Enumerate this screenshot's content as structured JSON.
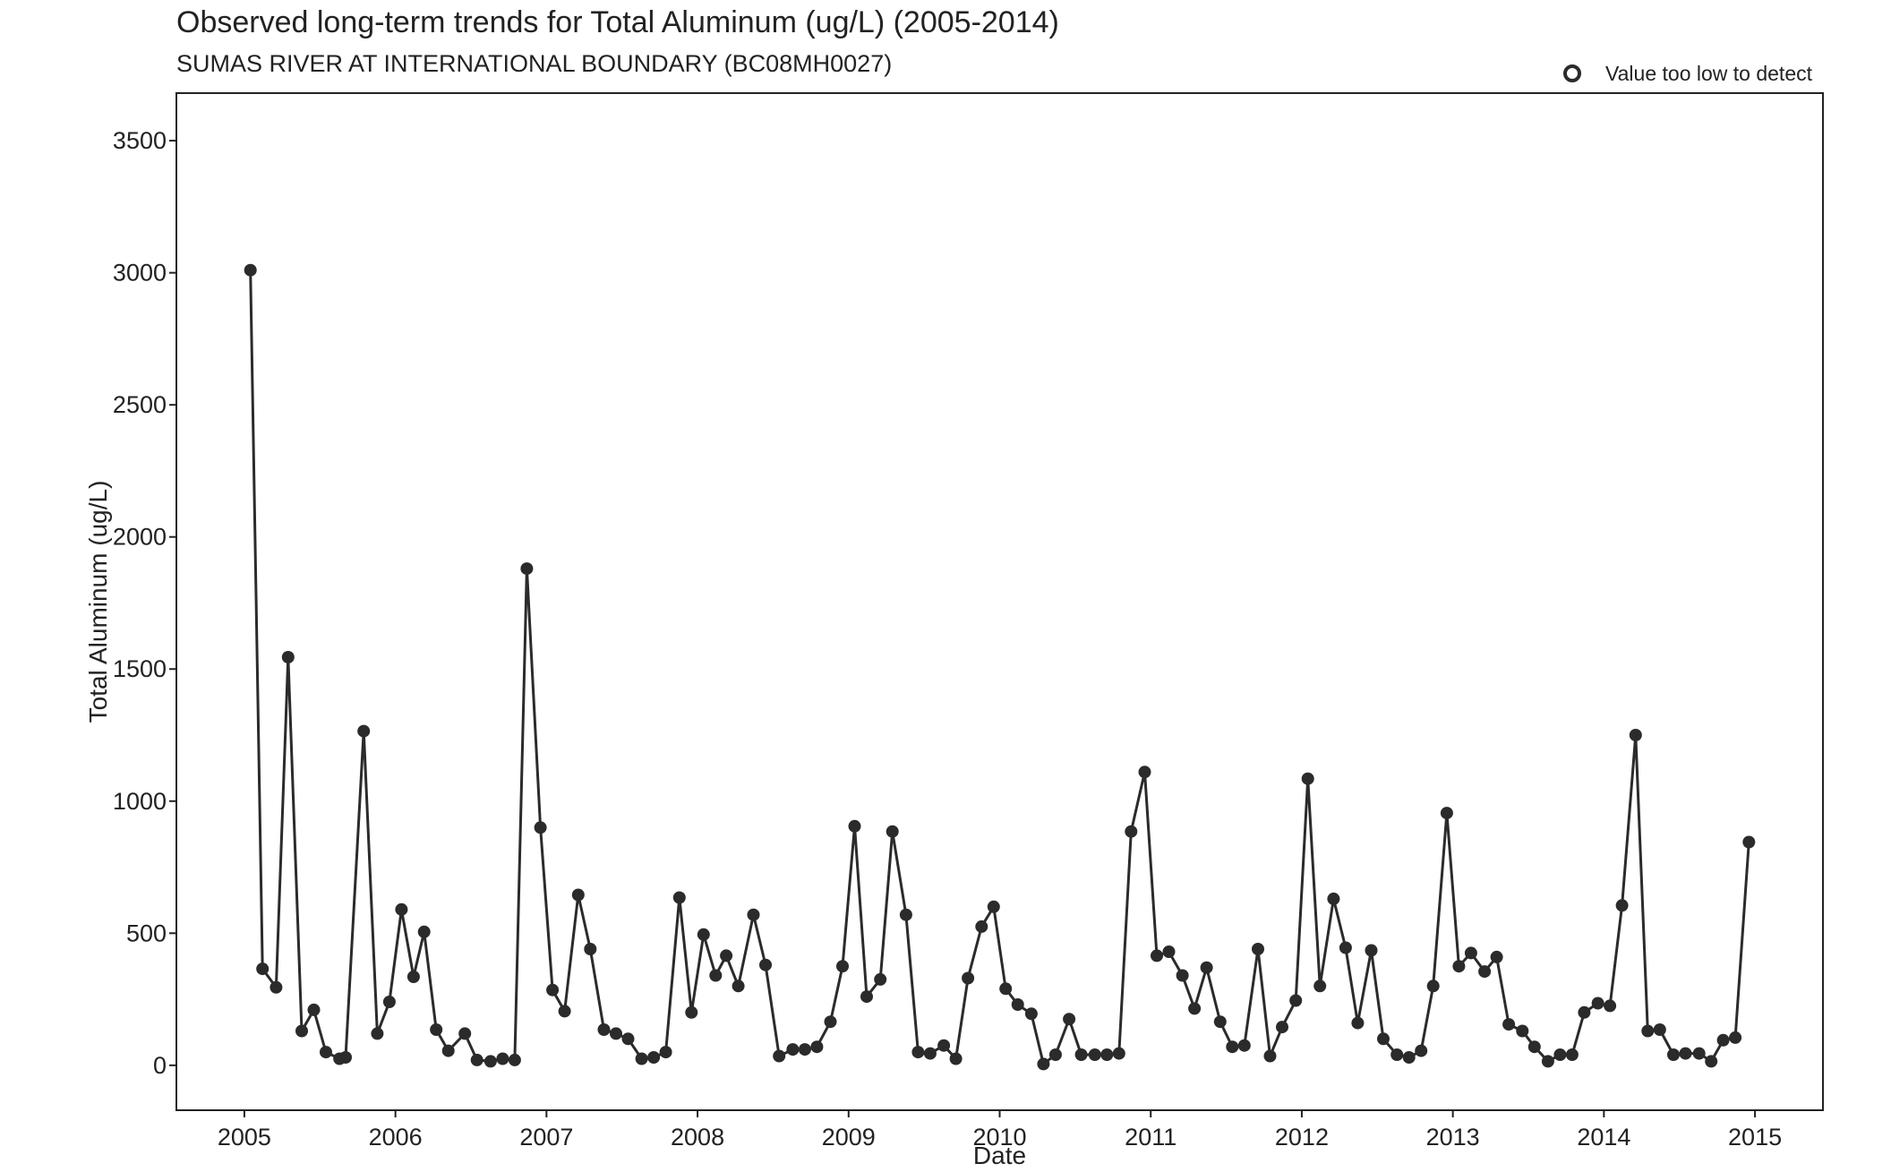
{
  "chart_data": {
    "type": "line",
    "title": "Observed long-term trends for Total Aluminum (ug/L) (2005-2014)",
    "subtitle": "SUMAS RIVER AT INTERNATIONAL BOUNDARY (BC08MH0027)",
    "xlabel": "Date",
    "ylabel": "Total Aluminum (ug/L)",
    "xlim": [
      2004.55,
      2015.45
    ],
    "ylim": [
      -170,
      3680
    ],
    "x_ticks": [
      2005,
      2006,
      2007,
      2008,
      2009,
      2010,
      2011,
      2012,
      2013,
      2014,
      2015
    ],
    "y_ticks": [
      0,
      500,
      1000,
      1500,
      2000,
      2500,
      3000,
      3500
    ],
    "grid": false,
    "legend": {
      "placement": "top-right",
      "entries": [
        {
          "label": "Value too low to detect",
          "marker": "open-circle"
        }
      ]
    },
    "colors": {
      "line": "#2b2b2b",
      "point": "#2b2b2b",
      "frame": "#222222"
    },
    "series": [
      {
        "x": [
          2005.04,
          2005.12,
          2005.21,
          2005.29,
          2005.38,
          2005.46,
          2005.54,
          2005.63,
          2005.67,
          2005.79,
          2005.88,
          2005.96,
          2006.04,
          2006.12,
          2006.19,
          2006.27,
          2006.35,
          2006.46,
          2006.54,
          2006.63,
          2006.71,
          2006.79,
          2006.87,
          2006.96,
          2007.04,
          2007.12,
          2007.21,
          2007.29,
          2007.38,
          2007.46,
          2007.54,
          2007.63,
          2007.71,
          2007.79,
          2007.88,
          2007.96,
          2008.04,
          2008.12,
          2008.19,
          2008.27,
          2008.37,
          2008.45,
          2008.54,
          2008.63,
          2008.71,
          2008.79,
          2008.88,
          2008.96,
          2009.04,
          2009.12,
          2009.21,
          2009.29,
          2009.38,
          2009.46,
          2009.54,
          2009.63,
          2009.71,
          2009.79,
          2009.88,
          2009.96,
          2010.04,
          2010.12,
          2010.21,
          2010.29,
          2010.37,
          2010.46,
          2010.54,
          2010.63,
          2010.71,
          2010.79,
          2010.87,
          2010.96,
          2011.04,
          2011.12,
          2011.21,
          2011.29,
          2011.37,
          2011.46,
          2011.54,
          2011.62,
          2011.71,
          2011.79,
          2011.87,
          2011.96,
          2012.04,
          2012.12,
          2012.21,
          2012.29,
          2012.37,
          2012.46,
          2012.54,
          2012.63,
          2012.71,
          2012.79,
          2012.87,
          2012.96,
          2013.04,
          2013.12,
          2013.21,
          2013.29,
          2013.37,
          2013.46,
          2013.54,
          2013.63,
          2013.71,
          2013.79,
          2013.87,
          2013.96,
          2014.04,
          2014.12,
          2014.21,
          2014.29,
          2014.37,
          2014.46,
          2014.54,
          2014.63,
          2014.71,
          2014.79,
          2014.87,
          2014.96
        ],
        "y": [
          3010,
          365,
          295,
          1545,
          130,
          210,
          50,
          25,
          30,
          1265,
          120,
          240,
          590,
          335,
          505,
          135,
          55,
          120,
          20,
          15,
          25,
          20,
          1880,
          900,
          285,
          205,
          645,
          440,
          135,
          120,
          100,
          25,
          30,
          50,
          635,
          200,
          495,
          340,
          415,
          300,
          570,
          380,
          35,
          60,
          60,
          70,
          165,
          375,
          905,
          260,
          325,
          885,
          570,
          50,
          45,
          75,
          25,
          330,
          525,
          600,
          290,
          230,
          195,
          5,
          40,
          175,
          40,
          40,
          40,
          45,
          885,
          1110,
          415,
          430,
          340,
          215,
          370,
          165,
          70,
          75,
          440,
          35,
          145,
          245,
          1085,
          300,
          630,
          445,
          160,
          435,
          100,
          40,
          30,
          55,
          300,
          955,
          375,
          425,
          355,
          410,
          155,
          130,
          70,
          15,
          40,
          40,
          200,
          235,
          225,
          605,
          1250,
          130,
          135,
          40,
          45,
          45,
          15,
          95,
          105,
          845
        ]
      }
    ]
  }
}
